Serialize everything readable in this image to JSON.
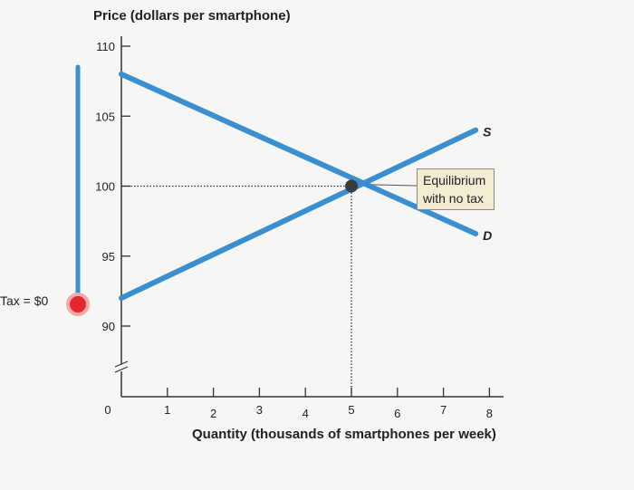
{
  "chart_data": {
    "type": "line",
    "ylabel": "Price (dollars per smartphone)",
    "xlabel": "Quantity (thousands of smartphones per week)",
    "x_ticks": [
      1,
      2,
      3,
      4,
      5,
      6,
      7,
      8
    ],
    "y_ticks": [
      90,
      95,
      100,
      105,
      110
    ],
    "origin_label": "0",
    "xlim": [
      0,
      8.4
    ],
    "ylim": [
      90,
      110
    ],
    "y_axis_break": true,
    "series": [
      {
        "name": "S",
        "x": [
          0,
          7.7
        ],
        "y": [
          92,
          104
        ],
        "color": "#3a8fd0"
      },
      {
        "name": "D",
        "x": [
          0,
          7.7
        ],
        "y": [
          108,
          96.6
        ],
        "color": "#3a8fd0"
      }
    ],
    "equilibrium": {
      "x": 5,
      "y": 100,
      "label_line1": "Equilibrium",
      "label_line2": "with no tax"
    },
    "tax_slider": {
      "label": "Tax = $0",
      "value": 0,
      "color": "#3a8fd0",
      "handle_color": "#e2272f"
    }
  }
}
